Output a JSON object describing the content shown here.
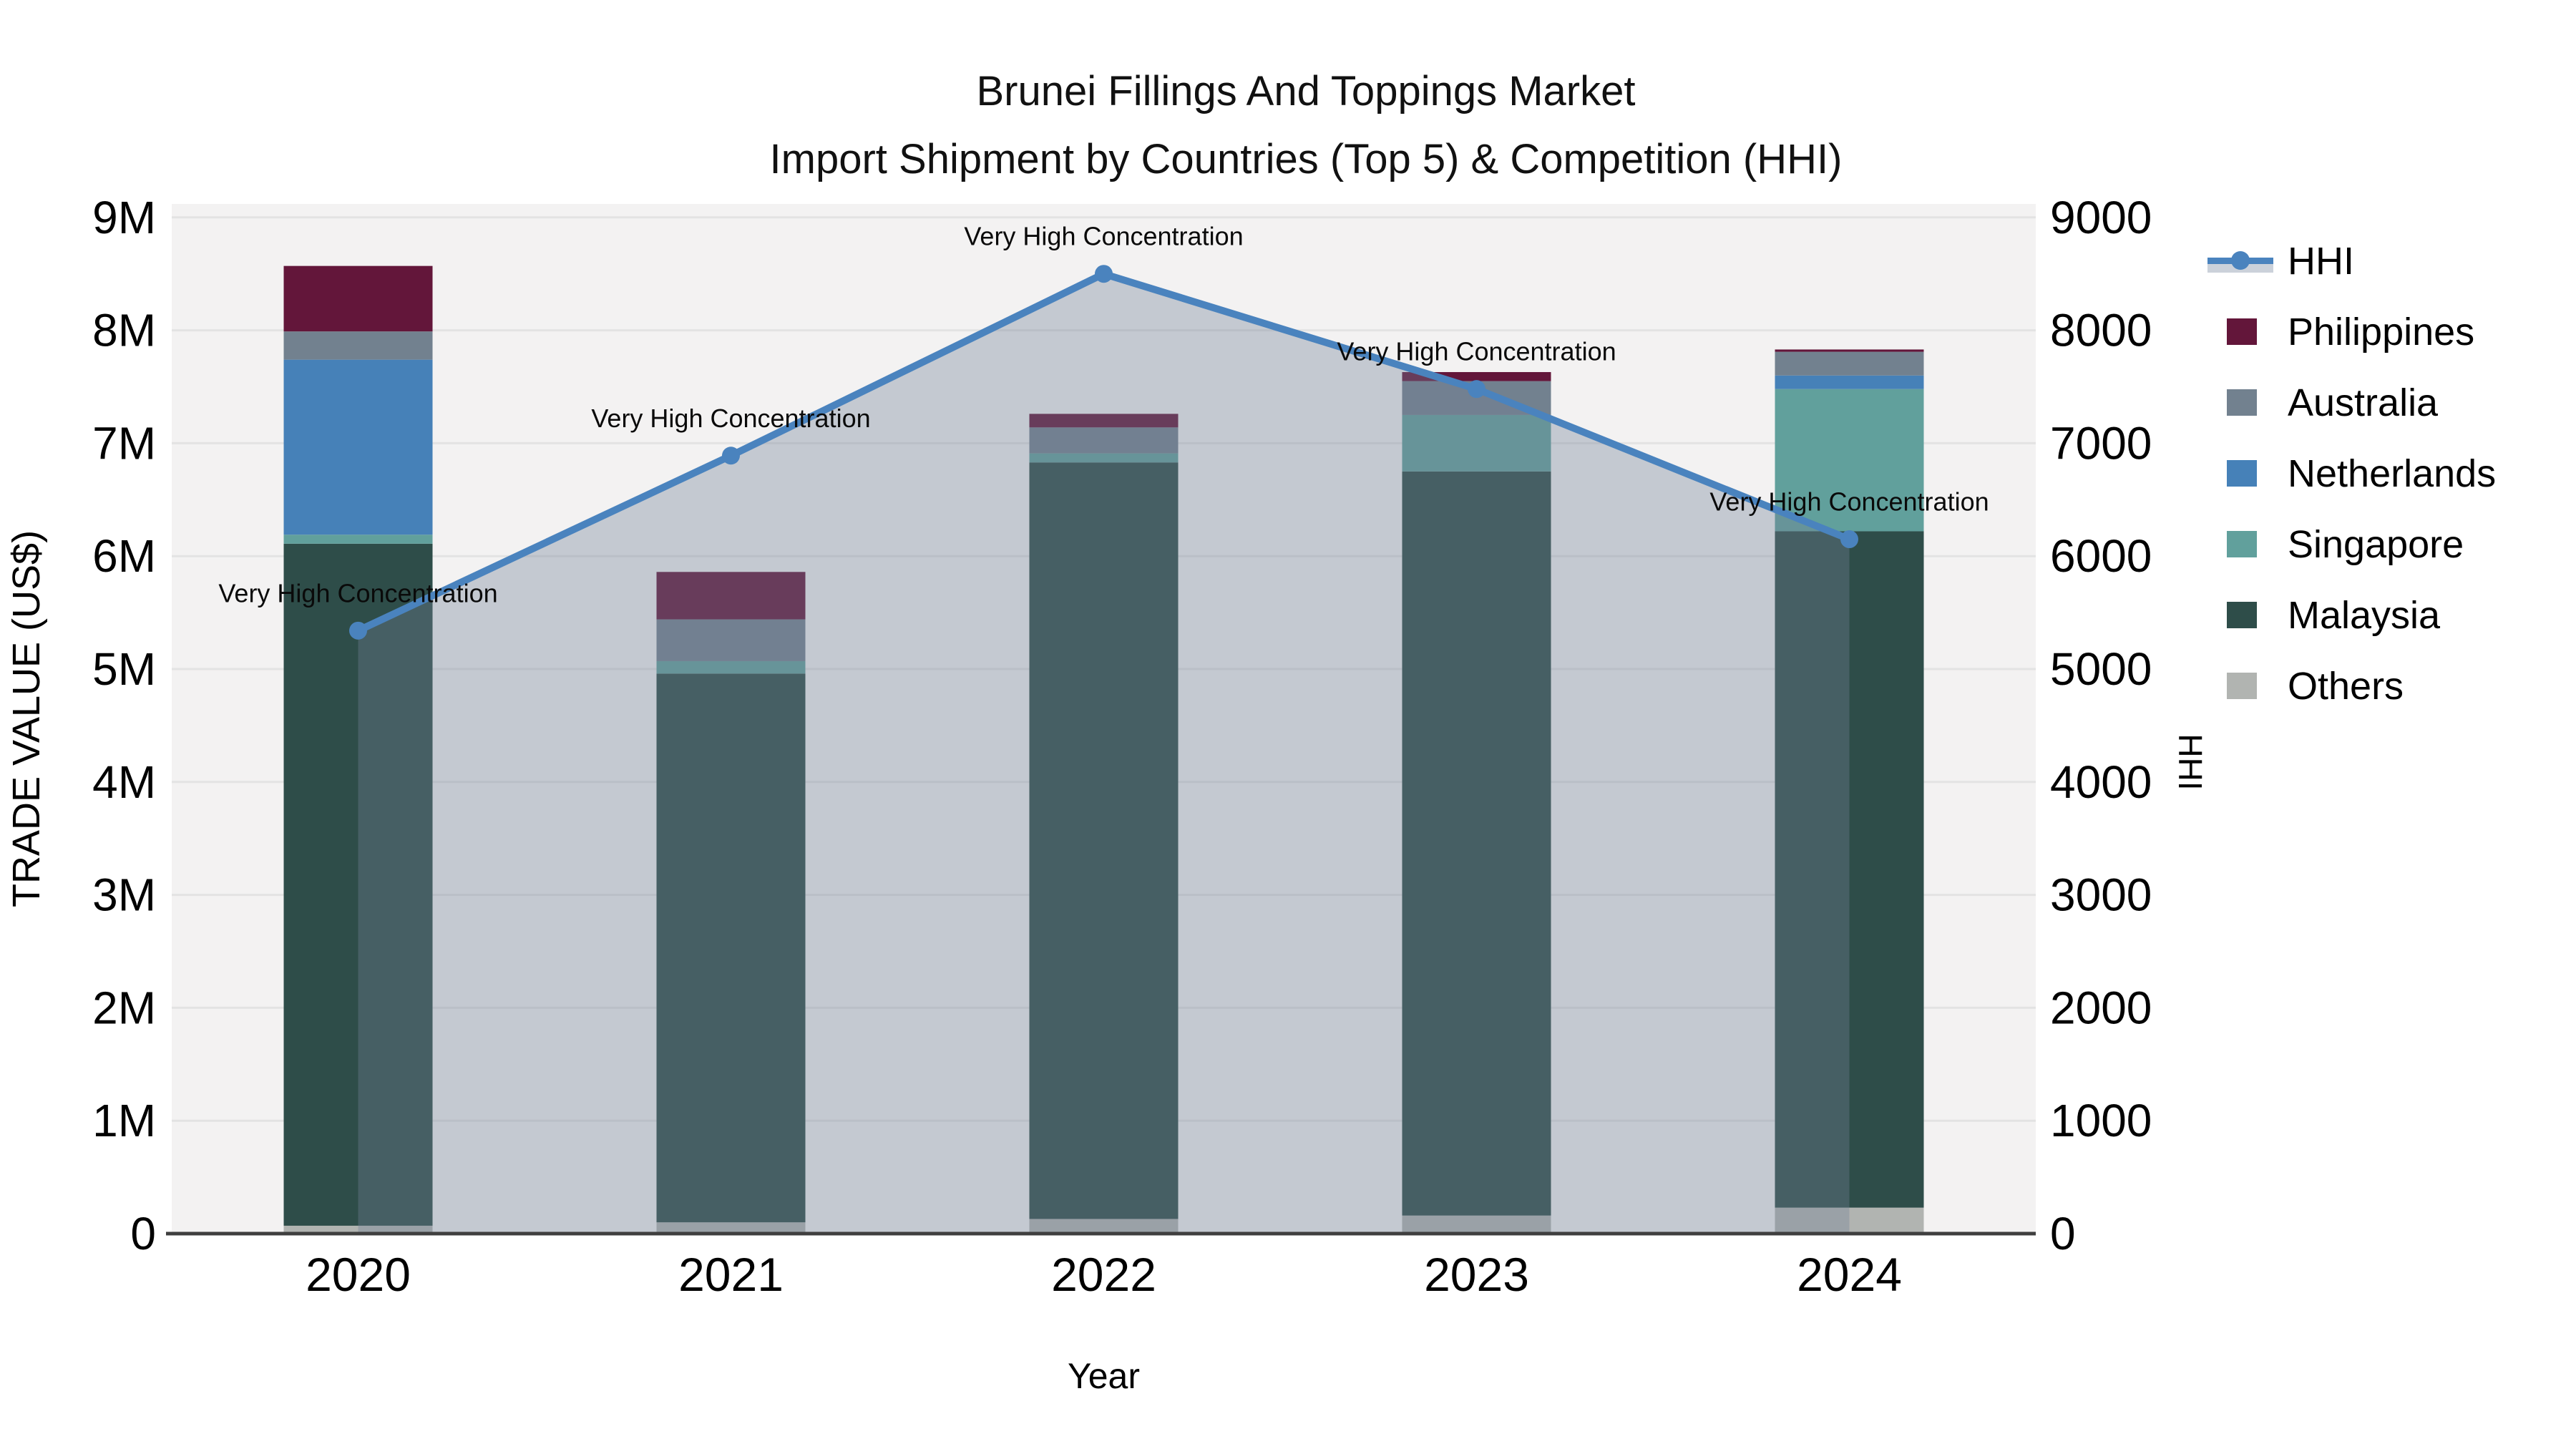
{
  "title": {
    "line1": "Brunei Fillings And Toppings Market",
    "line2": "Import Shipment by Countries (Top 5) & Competition (HHI)"
  },
  "axes": {
    "left_title": "TRADE VALUE (US$)",
    "right_title": "HHI",
    "x_title": "Year",
    "left_ticks": [
      "0",
      "1M",
      "2M",
      "3M",
      "4M",
      "5M",
      "6M",
      "7M",
      "8M",
      "9M"
    ],
    "right_ticks": [
      "0",
      "1000",
      "2000",
      "3000",
      "4000",
      "5000",
      "6000",
      "7000",
      "8000",
      "9000"
    ]
  },
  "legend": [
    {
      "label": "HHI",
      "type": "line",
      "color": "#4A83BE",
      "band": "#CBD1DA"
    },
    {
      "label": "Philippines",
      "type": "box",
      "color": "#63163A"
    },
    {
      "label": "Australia",
      "type": "box",
      "color": "#72818F"
    },
    {
      "label": "Netherlands",
      "type": "box",
      "color": "#4681B8"
    },
    {
      "label": "Singapore",
      "type": "box",
      "color": "#61A09C"
    },
    {
      "label": "Malaysia",
      "type": "box",
      "color": "#2E4D49"
    },
    {
      "label": "Others",
      "type": "box",
      "color": "#B1B4B1"
    }
  ],
  "chart_data": {
    "type": "bar",
    "subtype": "stacked-bars-with-line",
    "categories": [
      "2020",
      "2021",
      "2022",
      "2023",
      "2024"
    ],
    "bar_unit": "million US$",
    "series": [
      {
        "name": "Others",
        "color": "#B1B4B1",
        "values": [
          0.07,
          0.1,
          0.13,
          0.16,
          0.23
        ]
      },
      {
        "name": "Malaysia",
        "color": "#2E4D49",
        "values": [
          6.04,
          4.86,
          6.7,
          6.59,
          5.99
        ]
      },
      {
        "name": "Singapore",
        "color": "#61A09C",
        "values": [
          0.08,
          0.11,
          0.08,
          0.5,
          1.26
        ]
      },
      {
        "name": "Netherlands",
        "color": "#4681B8",
        "values": [
          1.55,
          0.0,
          0.0,
          0.0,
          0.12
        ]
      },
      {
        "name": "Australia",
        "color": "#72818F",
        "values": [
          0.25,
          0.37,
          0.23,
          0.3,
          0.21
        ]
      },
      {
        "name": "Philippines",
        "color": "#63163A",
        "values": [
          0.58,
          0.42,
          0.12,
          0.08,
          0.02
        ]
      }
    ],
    "line_series": {
      "name": "HHI",
      "color": "#4A83BE",
      "area_fill": "rgba(115,127,150,0.36)",
      "values": [
        5340,
        6890,
        8500,
        7480,
        6150
      ]
    },
    "annotations": [
      "Very High Concentration",
      "Very High Concentration",
      "Very High Concentration",
      "Very High Concentration",
      "Very High Concentration"
    ],
    "title": "Brunei Fillings And Toppings Market — Import Shipment by Countries (Top 5) & Competition (HHI)",
    "xlabel": "Year",
    "ylabel_left": "TRADE VALUE (US$)",
    "ylabel_right": "HHI",
    "ylim_left": [
      0,
      9000000
    ],
    "ylim_right": [
      0,
      9000
    ],
    "grid": true,
    "legend_position": "right",
    "plot_background": "#F3F2F2",
    "gridline_color": "#E3E3E3"
  }
}
